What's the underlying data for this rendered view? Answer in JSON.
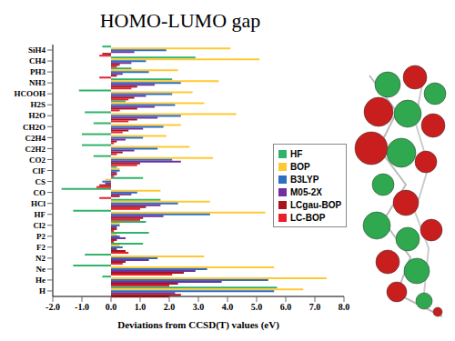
{
  "chart_data": {
    "type": "bar",
    "title": "HOMO-LUMO gap",
    "x_label": "Deviations from CCSD(T) values (eV)",
    "orientation": "horizontal",
    "grid": false,
    "legend": "right",
    "categories": [
      "SiH4",
      "CH4",
      "PH3",
      "NH3",
      "HCOOH",
      "H2S",
      "H2O",
      "CH2O",
      "C2H4",
      "C2H2",
      "CO2",
      "ClF",
      "CS",
      "CO",
      "HCl",
      "HF",
      "Cl2",
      "P2",
      "F2",
      "N2",
      "Ne",
      "He",
      "H"
    ],
    "series": [
      {
        "name": "HF",
        "color": "#2fb36b",
        "values": [
          -0.3,
          2.9,
          0.7,
          2.1,
          -1.1,
          0.5,
          -0.9,
          -0.6,
          -1.0,
          -1.0,
          -0.6,
          0.2,
          1.1,
          -1.7,
          1.7,
          -1.3,
          1.2,
          1.3,
          1.1,
          -0.9,
          -1.3,
          -0.3,
          5.7
        ]
      },
      {
        "name": "BOP",
        "color": "#ffc933",
        "values": [
          4.1,
          5.1,
          2.3,
          3.7,
          2.8,
          3.2,
          4.3,
          2.4,
          1.9,
          2.7,
          3.5,
          0.3,
          -0.2,
          1.7,
          3.4,
          5.3,
          0.3,
          0.2,
          0.3,
          3.2,
          5.6,
          7.4,
          6.6
        ]
      },
      {
        "name": "B3LYP",
        "color": "#2e6fc0",
        "values": [
          1.9,
          1.2,
          1.3,
          2.4,
          2.1,
          2.2,
          2.4,
          1.8,
          1.1,
          1.6,
          2.1,
          0.3,
          -0.3,
          0.9,
          2.3,
          3.4,
          0.3,
          0.3,
          0.4,
          1.6,
          3.3,
          5.4,
          5.6
        ]
      },
      {
        "name": "M05-2X",
        "color": "#7030a0",
        "values": [
          0.8,
          0.7,
          0.4,
          1.5,
          1.2,
          1.5,
          1.6,
          1.1,
          0.5,
          0.8,
          2.4,
          0.2,
          -0.2,
          0.7,
          1.7,
          1.8,
          0.2,
          0.5,
          0.2,
          1.3,
          2.9,
          3.8,
          2.2
        ]
      },
      {
        "name": "LCgau-BOP",
        "color": "#a8141c",
        "values": [
          -0.3,
          0.3,
          0.2,
          0.9,
          0.8,
          0.9,
          0.9,
          0.6,
          0.2,
          0.4,
          1.0,
          0.2,
          -0.4,
          0.3,
          1.2,
          1.1,
          0.2,
          0.2,
          0.5,
          0.5,
          2.5,
          2.3,
          2.4
        ]
      },
      {
        "name": "LC-BOP",
        "color": "#e8202a",
        "values": [
          -0.4,
          0.2,
          -0.4,
          0.7,
          0.6,
          0.3,
          0.6,
          0.4,
          0.1,
          0.2,
          0.9,
          0.1,
          -0.5,
          -0.4,
          1.0,
          1.0,
          0.1,
          0.1,
          0.6,
          0.4,
          2.1,
          2.0,
          2.0
        ]
      }
    ],
    "xlim": [
      -2,
      8
    ],
    "xticks": [
      {
        "value": -2,
        "label": "-2.0"
      },
      {
        "value": -1,
        "label": "-1.0"
      },
      {
        "value": 0,
        "label": "0.0"
      },
      {
        "value": 1,
        "label": "1.0"
      },
      {
        "value": 2,
        "label": "2.0"
      },
      {
        "value": 3,
        "label": "3.0"
      },
      {
        "value": 4,
        "label": "4.0"
      },
      {
        "value": 5,
        "label": "5.0"
      },
      {
        "value": 6,
        "label": "6.0"
      },
      {
        "value": 7,
        "label": "7.0"
      },
      {
        "value": 8,
        "label": "8.0"
      }
    ]
  }
}
